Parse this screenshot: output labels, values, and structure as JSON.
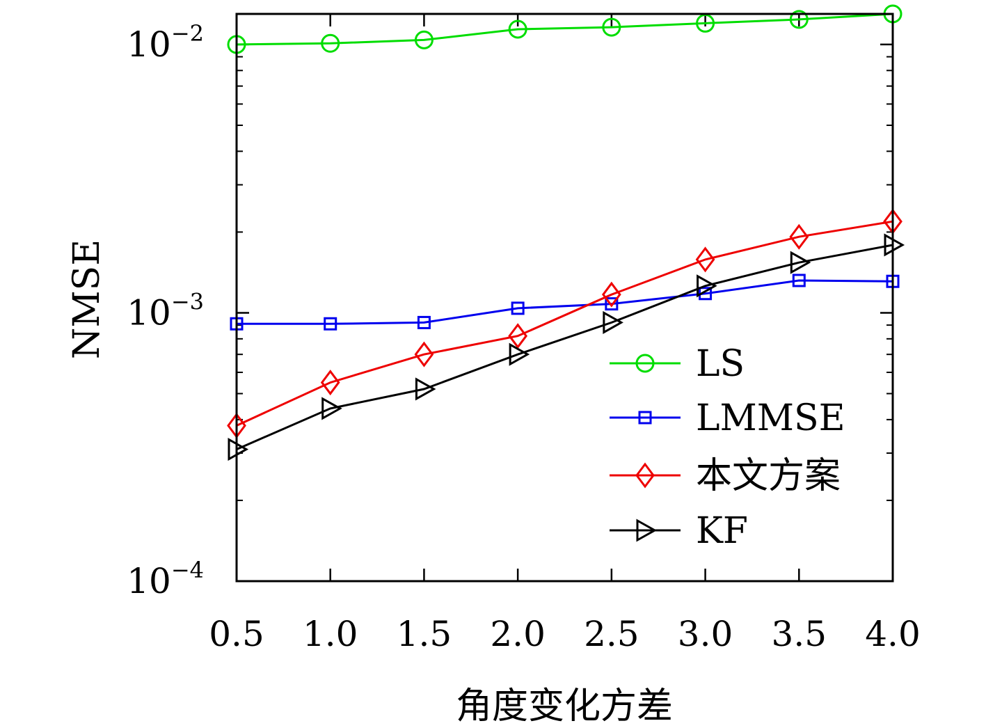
{
  "chart_data": {
    "type": "line",
    "x": [
      0.5,
      1.0,
      1.5,
      2.0,
      2.5,
      3.0,
      3.5,
      4.0
    ],
    "x_tick_labels": [
      "0.5",
      "1.0",
      "1.5",
      "2.0",
      "2.5",
      "3.0",
      "3.5",
      "4.0"
    ],
    "xlim": [
      0.5,
      4.0
    ],
    "ylim": [
      0.0001,
      0.013
    ],
    "y_scale": "log",
    "y_ticks": [
      {
        "value": 0.0001,
        "base": "10",
        "exp": "−4"
      },
      {
        "value": 0.001,
        "base": "10",
        "exp": "−3"
      },
      {
        "value": 0.01,
        "base": "10",
        "exp": "−2"
      }
    ],
    "xlabel": "角度变化方差",
    "ylabel": "NMSE",
    "grid": false,
    "legend_position": "lower-right",
    "series": [
      {
        "name": "LS",
        "color": "#00dd00",
        "marker": "circle",
        "values": [
          0.01,
          0.0101,
          0.0104,
          0.0114,
          0.0116,
          0.012,
          0.0124,
          0.013
        ]
      },
      {
        "name": "LMMSE",
        "color": "#0000ee",
        "marker": "square",
        "values": [
          0.00091,
          0.00091,
          0.00092,
          0.00104,
          0.00108,
          0.00118,
          0.00132,
          0.00131
        ]
      },
      {
        "name": "本文方案",
        "color": "#ee0000",
        "marker": "diamond",
        "values": [
          0.00038,
          0.00055,
          0.0007,
          0.00082,
          0.00117,
          0.00158,
          0.00192,
          0.00219
        ]
      },
      {
        "name": "KF",
        "color": "#000000",
        "marker": "triangle-right",
        "values": [
          0.00031,
          0.00044,
          0.00052,
          0.0007,
          0.00092,
          0.00126,
          0.00154,
          0.00179
        ]
      }
    ]
  }
}
